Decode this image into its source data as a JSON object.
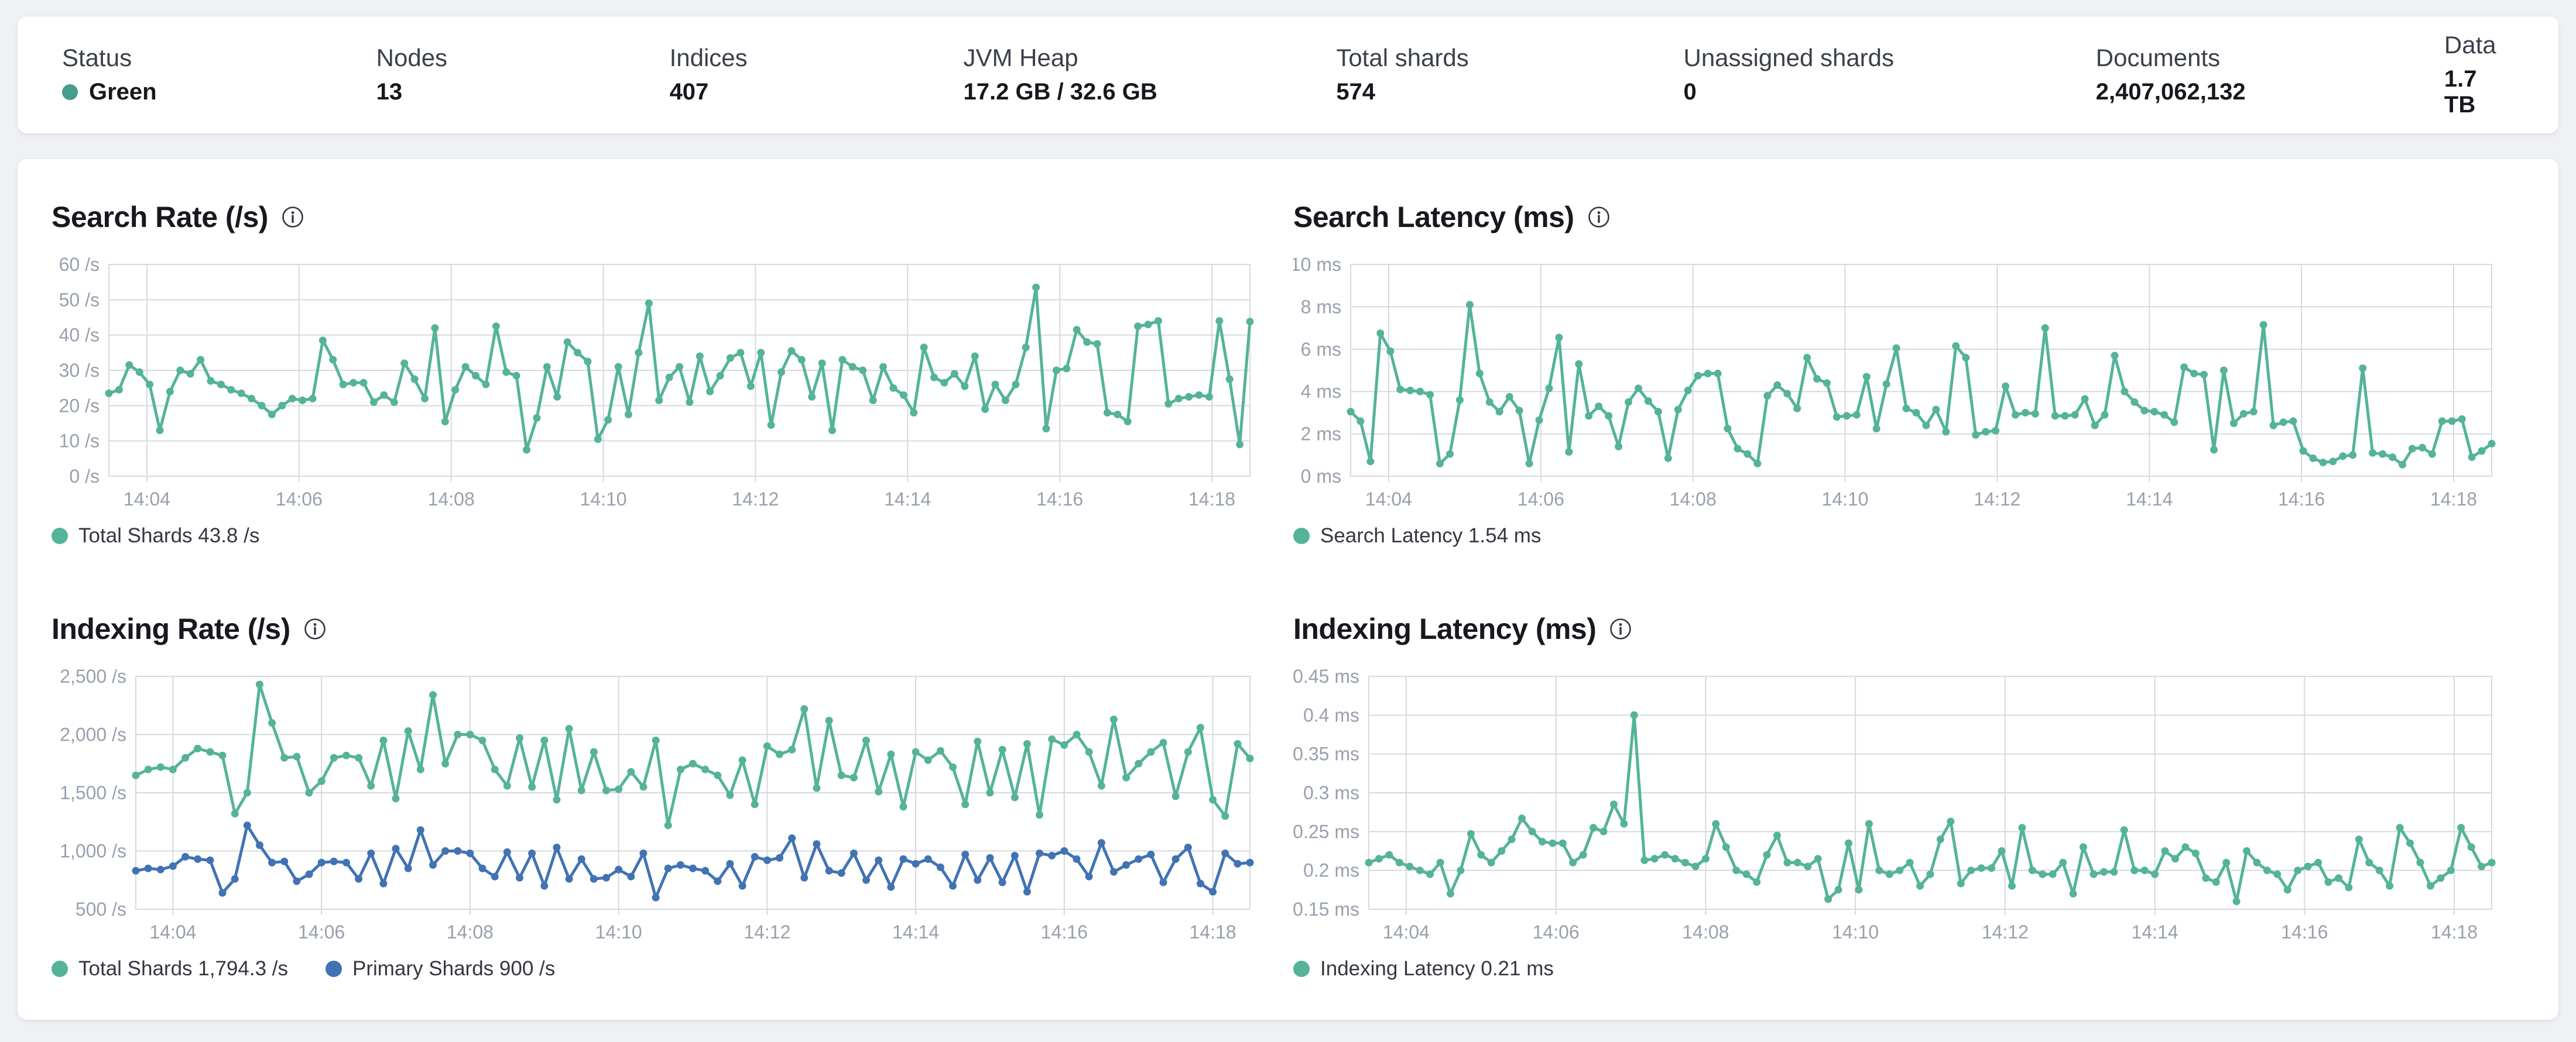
{
  "header": {
    "stats": [
      {
        "label": "Status",
        "value": "Green",
        "dot_color": "#459c8f"
      },
      {
        "label": "Nodes",
        "value": "13"
      },
      {
        "label": "Indices",
        "value": "407"
      },
      {
        "label": "JVM Heap",
        "value": "17.2 GB / 32.6 GB"
      },
      {
        "label": "Total shards",
        "value": "574"
      },
      {
        "label": "Unassigned shards",
        "value": "0"
      },
      {
        "label": "Documents",
        "value": "2,407,062,132"
      },
      {
        "label": "Data",
        "value": "1.7 TB"
      }
    ]
  },
  "colors": {
    "teal": "#54b399",
    "blue": "#4173b3",
    "grid": "#d7d9df",
    "tick": "#98a0ad"
  },
  "chart_data": [
    {
      "type": "line",
      "title": "Search Rate (/s)",
      "ylabel": "/s",
      "ylim": [
        0,
        60
      ],
      "grid": true,
      "legend_position": "bottom",
      "x_window_minutes": 15,
      "x_first_tick_offset_minutes": 0.5,
      "x_tick_step_minutes": 2,
      "x_ticks": [
        "14:04",
        "14:06",
        "14:08",
        "14:10",
        "14:12",
        "14:14",
        "14:16",
        "14:18"
      ],
      "y_ticks": [
        {
          "value": 60,
          "label": "60 /s"
        },
        {
          "value": 50,
          "label": "50 /s"
        },
        {
          "value": 40,
          "label": "40 /s"
        },
        {
          "value": 30,
          "label": "30 /s"
        },
        {
          "value": 20,
          "label": "20 /s"
        },
        {
          "value": 10,
          "label": "10 /s"
        },
        {
          "value": 0,
          "label": "0 /s"
        }
      ],
      "legend": [
        {
          "label": "Total Shards 43.8 /s",
          "color": "#54b399"
        }
      ],
      "series": [
        {
          "name": "Total Shards",
          "color": "#54b399",
          "values": [
            23.5,
            24.5,
            31.5,
            29.5,
            26,
            13,
            24,
            30,
            29,
            33,
            27,
            26,
            24.5,
            23.5,
            22,
            20,
            17.5,
            20,
            22,
            21.5,
            22,
            38.5,
            33,
            26,
            26.5,
            26.5,
            21,
            23,
            21,
            32,
            27.5,
            22,
            42,
            15.5,
            24.5,
            31,
            28.5,
            26,
            42.5,
            29.5,
            28.5,
            7.5,
            16.5,
            31,
            22.5,
            38,
            35,
            32.5,
            10.5,
            16,
            31,
            17.5,
            35,
            49,
            21.5,
            28,
            31,
            21,
            34,
            24,
            28.5,
            33.5,
            35,
            25.5,
            35,
            14.5,
            29.5,
            35.5,
            33,
            22.5,
            32,
            13,
            33,
            31,
            30,
            21.5,
            31,
            25,
            23,
            18,
            36.5,
            28,
            26.5,
            29,
            25.5,
            34,
            19,
            26,
            21.5,
            26,
            36.5,
            53.5,
            13.5,
            30,
            30.5,
            41.5,
            38,
            37.5,
            18,
            17.5,
            15.5,
            42.5,
            43,
            44,
            20.5,
            22,
            22.5,
            23,
            22.5,
            44,
            27.5,
            9,
            43.8
          ]
        }
      ]
    },
    {
      "type": "line",
      "title": "Search Latency (ms)",
      "ylabel": "ms",
      "ylim": [
        0,
        10
      ],
      "grid": true,
      "legend_position": "bottom",
      "x_window_minutes": 15,
      "x_first_tick_offset_minutes": 0.5,
      "x_tick_step_minutes": 2,
      "x_ticks": [
        "14:04",
        "14:06",
        "14:08",
        "14:10",
        "14:12",
        "14:14",
        "14:16",
        "14:18"
      ],
      "y_ticks": [
        {
          "value": 10,
          "label": "10 ms"
        },
        {
          "value": 8,
          "label": "8 ms"
        },
        {
          "value": 6,
          "label": "6 ms"
        },
        {
          "value": 4,
          "label": "4 ms"
        },
        {
          "value": 2,
          "label": "2 ms"
        },
        {
          "value": 0,
          "label": "0 ms"
        }
      ],
      "legend": [
        {
          "label": "Search Latency 1.54 ms",
          "color": "#54b399"
        }
      ],
      "series": [
        {
          "name": "Search Latency",
          "color": "#54b399",
          "values": [
            3.05,
            2.6,
            0.7,
            6.75,
            5.9,
            4.1,
            4.05,
            4.0,
            3.85,
            0.6,
            1.05,
            3.6,
            8.1,
            4.85,
            3.5,
            3.05,
            3.75,
            3.1,
            0.6,
            2.65,
            4.15,
            6.55,
            1.15,
            5.3,
            2.85,
            3.3,
            2.85,
            1.4,
            3.5,
            4.15,
            3.55,
            3.05,
            0.85,
            3.15,
            4.05,
            4.75,
            4.85,
            4.85,
            2.25,
            1.3,
            1.05,
            0.6,
            3.8,
            4.3,
            3.9,
            3.2,
            5.6,
            4.6,
            4.4,
            2.8,
            2.85,
            2.9,
            4.7,
            2.25,
            4.35,
            6.05,
            3.2,
            3.0,
            2.4,
            3.15,
            2.1,
            6.15,
            5.6,
            1.95,
            2.1,
            2.15,
            4.25,
            2.9,
            3.0,
            2.95,
            7.0,
            2.85,
            2.85,
            2.9,
            3.65,
            2.4,
            2.9,
            5.7,
            4.0,
            3.5,
            3.1,
            3.05,
            2.9,
            2.55,
            5.15,
            4.85,
            4.8,
            1.25,
            5.0,
            2.5,
            2.95,
            3.05,
            7.15,
            2.4,
            2.55,
            2.6,
            1.2,
            0.85,
            0.65,
            0.7,
            0.95,
            1.0,
            5.1,
            1.1,
            1.05,
            0.9,
            0.55,
            1.3,
            1.35,
            1.05,
            2.6,
            2.6,
            2.7,
            0.9,
            1.2,
            1.54
          ]
        }
      ]
    },
    {
      "type": "line",
      "title": "Indexing Rate (/s)",
      "ylabel": "/s",
      "ylim": [
        500,
        2500
      ],
      "grid": true,
      "legend_position": "bottom",
      "x_window_minutes": 15,
      "x_first_tick_offset_minutes": 0.5,
      "x_tick_step_minutes": 2,
      "x_ticks": [
        "14:04",
        "14:06",
        "14:08",
        "14:10",
        "14:12",
        "14:14",
        "14:16",
        "14:18"
      ],
      "y_ticks": [
        {
          "value": 2500,
          "label": "2,500 /s"
        },
        {
          "value": 2000,
          "label": "2,000 /s"
        },
        {
          "value": 1500,
          "label": "1,500 /s"
        },
        {
          "value": 1000,
          "label": "1,000 /s"
        },
        {
          "value": 500,
          "label": "500 /s"
        }
      ],
      "legend": [
        {
          "label": "Total Shards 1,794.3 /s",
          "color": "#54b399"
        },
        {
          "label": "Primary Shards 900 /s",
          "color": "#4173b3"
        }
      ],
      "series": [
        {
          "name": "Total Shards",
          "color": "#54b399",
          "values": [
            1650,
            1700,
            1720,
            1700,
            1800,
            1880,
            1850,
            1820,
            1320,
            1500,
            2430,
            2100,
            1800,
            1810,
            1500,
            1600,
            1800,
            1820,
            1800,
            1560,
            1950,
            1450,
            2030,
            1700,
            2340,
            1750,
            2000,
            2000,
            1950,
            1700,
            1560,
            1970,
            1550,
            1950,
            1440,
            2050,
            1520,
            1850,
            1520,
            1530,
            1680,
            1550,
            1950,
            1220,
            1700,
            1750,
            1700,
            1650,
            1480,
            1780,
            1400,
            1900,
            1830,
            1870,
            2220,
            1540,
            2120,
            1650,
            1630,
            1950,
            1510,
            1830,
            1380,
            1850,
            1780,
            1860,
            1720,
            1400,
            1940,
            1500,
            1870,
            1460,
            1920,
            1310,
            1960,
            1910,
            2000,
            1850,
            1560,
            2130,
            1630,
            1750,
            1850,
            1930,
            1470,
            1850,
            2060,
            1440,
            1300,
            1920,
            1794.3
          ]
        },
        {
          "name": "Primary Shards",
          "color": "#4173b3",
          "values": [
            830,
            850,
            840,
            870,
            950,
            930,
            920,
            640,
            760,
            1220,
            1050,
            900,
            910,
            740,
            800,
            900,
            910,
            900,
            760,
            980,
            720,
            1020,
            850,
            1180,
            880,
            1000,
            1000,
            980,
            850,
            780,
            990,
            770,
            980,
            700,
            1030,
            760,
            930,
            760,
            770,
            840,
            780,
            980,
            600,
            850,
            880,
            850,
            830,
            740,
            890,
            700,
            950,
            920,
            940,
            1110,
            770,
            1060,
            830,
            810,
            980,
            750,
            920,
            690,
            930,
            890,
            930,
            860,
            700,
            970,
            750,
            940,
            730,
            960,
            650,
            980,
            960,
            1000,
            930,
            780,
            1070,
            820,
            880,
            930,
            970,
            730,
            930,
            1030,
            720,
            650,
            980,
            890,
            900
          ]
        }
      ]
    },
    {
      "type": "line",
      "title": "Indexing Latency (ms)",
      "ylabel": "ms",
      "ylim": [
        0.15,
        0.45
      ],
      "grid": true,
      "legend_position": "bottom",
      "x_window_minutes": 15,
      "x_first_tick_offset_minutes": 0.5,
      "x_tick_step_minutes": 2,
      "x_ticks": [
        "14:04",
        "14:06",
        "14:08",
        "14:10",
        "14:12",
        "14:14",
        "14:16",
        "14:18"
      ],
      "y_ticks": [
        {
          "value": 0.45,
          "label": "0.45 ms"
        },
        {
          "value": 0.4,
          "label": "0.4 ms"
        },
        {
          "value": 0.35,
          "label": "0.35 ms"
        },
        {
          "value": 0.3,
          "label": "0.3 ms"
        },
        {
          "value": 0.25,
          "label": "0.25 ms"
        },
        {
          "value": 0.2,
          "label": "0.2 ms"
        },
        {
          "value": 0.15,
          "label": "0.15 ms"
        }
      ],
      "legend": [
        {
          "label": "Indexing Latency 0.21 ms",
          "color": "#54b399"
        }
      ],
      "series": [
        {
          "name": "Indexing Latency",
          "color": "#54b399",
          "values": [
            0.21,
            0.215,
            0.22,
            0.21,
            0.205,
            0.2,
            0.195,
            0.21,
            0.17,
            0.2,
            0.247,
            0.22,
            0.21,
            0.225,
            0.24,
            0.267,
            0.25,
            0.237,
            0.235,
            0.235,
            0.21,
            0.22,
            0.255,
            0.25,
            0.285,
            0.26,
            0.4,
            0.213,
            0.215,
            0.22,
            0.215,
            0.21,
            0.205,
            0.215,
            0.26,
            0.23,
            0.2,
            0.195,
            0.185,
            0.22,
            0.245,
            0.21,
            0.21,
            0.205,
            0.215,
            0.163,
            0.175,
            0.235,
            0.175,
            0.26,
            0.2,
            0.195,
            0.2,
            0.21,
            0.18,
            0.195,
            0.24,
            0.263,
            0.183,
            0.2,
            0.203,
            0.203,
            0.225,
            0.18,
            0.255,
            0.2,
            0.195,
            0.195,
            0.21,
            0.17,
            0.23,
            0.195,
            0.198,
            0.198,
            0.252,
            0.2,
            0.2,
            0.195,
            0.225,
            0.215,
            0.23,
            0.222,
            0.19,
            0.185,
            0.21,
            0.16,
            0.225,
            0.21,
            0.2,
            0.195,
            0.175,
            0.2,
            0.205,
            0.21,
            0.185,
            0.19,
            0.178,
            0.24,
            0.21,
            0.2,
            0.18,
            0.255,
            0.235,
            0.21,
            0.18,
            0.19,
            0.2,
            0.255,
            0.23,
            0.205,
            0.21
          ]
        }
      ]
    }
  ]
}
